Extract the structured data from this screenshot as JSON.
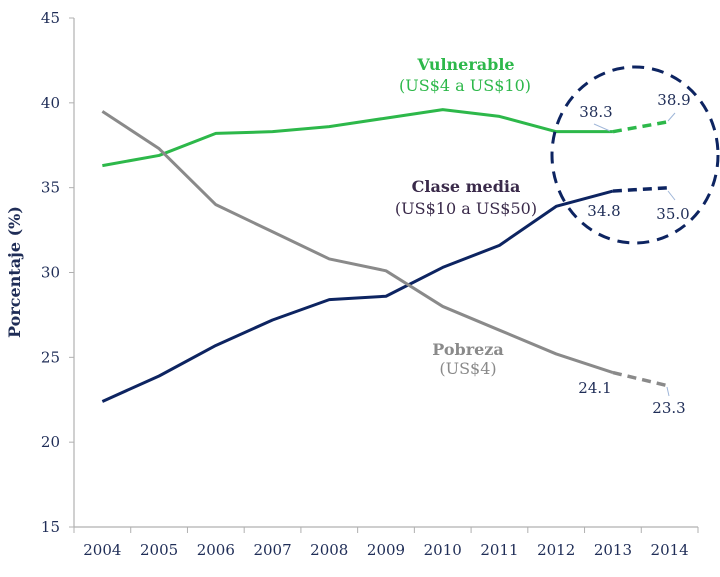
{
  "chart_data": {
    "type": "line",
    "title": "",
    "xlabel": "",
    "ylabel": "Porcentaje (%)",
    "ylim": [
      15,
      45
    ],
    "yticks": [
      15,
      20,
      25,
      30,
      35,
      40,
      45
    ],
    "grid": false,
    "categories": [
      "2004",
      "2005",
      "2006",
      "2007",
      "2008",
      "2009",
      "2010",
      "2011",
      "2012",
      "2013",
      "2014"
    ],
    "series": [
      {
        "name": "Vulnerable",
        "sublabel": "(US$4 a US$10)",
        "color": "#2db84a",
        "values": [
          36.3,
          36.9,
          38.2,
          38.3,
          38.6,
          39.1,
          39.6,
          39.2,
          38.3,
          38.3,
          38.9
        ],
        "dashed_from": "2013"
      },
      {
        "name": "Clase media",
        "sublabel": "(US$10 a US$50)",
        "color": "#0d2461",
        "values": [
          22.4,
          23.9,
          25.7,
          27.2,
          28.4,
          28.6,
          30.3,
          31.6,
          33.9,
          34.8,
          35.0
        ],
        "dashed_from": "2013"
      },
      {
        "name": "Pobreza",
        "sublabel": "(US$4)",
        "color": "#8a8a8a",
        "values": [
          39.5,
          37.3,
          34.0,
          32.4,
          30.8,
          30.1,
          28.0,
          26.6,
          25.2,
          24.1,
          23.3
        ],
        "dashed_from": "2013"
      }
    ],
    "data_labels": {
      "vulnerable_2013": "38.3",
      "vulnerable_2014": "38.9",
      "clase_media_2013": "34.8",
      "clase_media_2014": "35.0",
      "pobreza_2013": "24.1",
      "pobreza_2014": "23.3"
    },
    "annotation": "dashed circle highlighting 2013-2014 projections",
    "colors": {
      "axis": "#b0b0b0",
      "text": "#1f2d57",
      "circle": "#0d2461",
      "clase_media_label": "#3a2a4a"
    }
  }
}
